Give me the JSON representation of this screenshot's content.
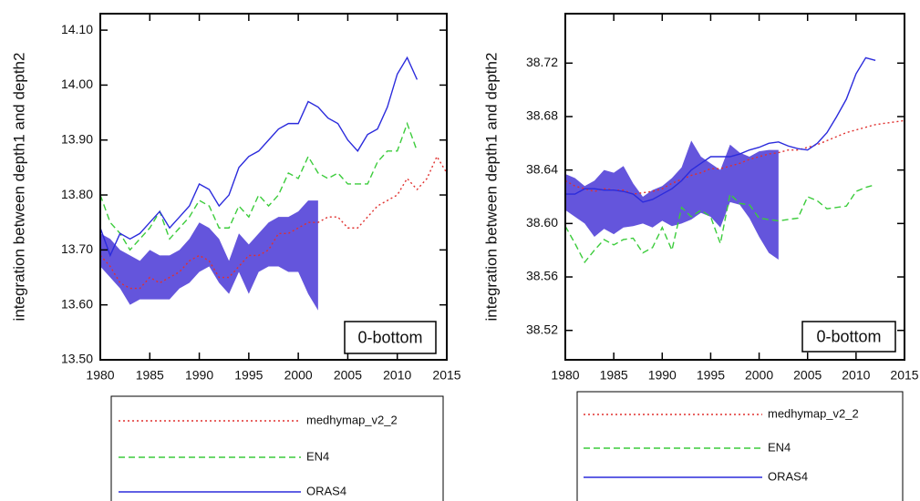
{
  "chart_data": [
    {
      "type": "line",
      "y_label": "integration between depth1 and depth2",
      "annotation": "0-bottom",
      "x": [
        1980,
        1981,
        1982,
        1983,
        1984,
        1985,
        1986,
        1987,
        1988,
        1989,
        1990,
        1991,
        1992,
        1993,
        1994,
        1995,
        1996,
        1997,
        1998,
        1999,
        2000,
        2001,
        2002,
        2003,
        2004,
        2005,
        2006,
        2007,
        2008,
        2009,
        2010,
        2011,
        2012,
        2013,
        2014,
        2015
      ],
      "xlim": [
        1980,
        2015
      ],
      "xticks": [
        1980,
        1985,
        1990,
        1995,
        2000,
        2005,
        2010,
        2015
      ],
      "ylim": [
        13.5,
        14.13
      ],
      "yticks": [
        {
          "value": 13.5,
          "label": "13.50"
        },
        {
          "value": 13.6,
          "label": "13.60"
        },
        {
          "value": 13.7,
          "label": "13.70"
        },
        {
          "value": 13.8,
          "label": "13.80"
        },
        {
          "value": 13.9,
          "label": "13.90"
        },
        {
          "value": 14.0,
          "label": "14.00"
        },
        {
          "value": 14.1,
          "label": "14.10"
        }
      ],
      "band": {
        "color": "#6455dc",
        "lower": [
          13.67,
          13.65,
          13.63,
          13.6,
          13.61,
          13.61,
          13.61,
          13.61,
          13.63,
          13.64,
          13.66,
          13.67,
          13.64,
          13.62,
          13.66,
          13.62,
          13.66,
          13.67,
          13.67,
          13.66,
          13.66,
          13.62,
          13.59,
          null,
          null,
          null,
          null,
          null,
          null,
          null,
          null,
          null,
          null,
          null,
          null,
          null
        ],
        "upper": [
          13.73,
          13.72,
          13.7,
          13.69,
          13.68,
          13.7,
          13.69,
          13.69,
          13.7,
          13.72,
          13.75,
          13.74,
          13.72,
          13.68,
          13.73,
          13.71,
          13.73,
          13.75,
          13.76,
          13.76,
          13.77,
          13.79,
          13.79,
          null,
          null,
          null,
          null,
          null,
          null,
          null,
          null,
          null,
          null,
          null,
          null,
          null
        ]
      },
      "series": [
        {
          "name": "medhymap_v2_2",
          "color": "#e0302e",
          "dash": "2,3",
          "values": [
            13.69,
            13.67,
            13.64,
            13.63,
            13.63,
            13.65,
            13.64,
            13.65,
            13.66,
            13.68,
            13.69,
            13.68,
            13.65,
            13.65,
            13.67,
            13.69,
            13.69,
            13.7,
            13.73,
            13.73,
            13.74,
            13.75,
            13.75,
            13.76,
            13.76,
            13.74,
            13.74,
            13.76,
            13.78,
            13.79,
            13.8,
            13.83,
            13.81,
            13.83,
            13.87,
            13.84
          ]
        },
        {
          "name": "EN4",
          "color": "#3ccc3c",
          "dash": "7,4",
          "values": [
            13.8,
            13.75,
            13.73,
            13.7,
            13.72,
            13.74,
            13.77,
            13.72,
            13.74,
            13.76,
            13.79,
            13.78,
            13.74,
            13.74,
            13.78,
            13.76,
            13.8,
            13.78,
            13.8,
            13.84,
            13.83,
            13.87,
            13.84,
            13.83,
            13.84,
            13.82,
            13.82,
            13.82,
            13.86,
            13.88,
            13.88,
            13.93,
            13.88,
            null,
            null,
            null
          ]
        },
        {
          "name": "ORAS4",
          "color": "#2b2bdc",
          "dash": "none",
          "values": [
            13.74,
            13.69,
            13.73,
            13.72,
            13.73,
            13.75,
            13.77,
            13.74,
            13.76,
            13.78,
            13.82,
            13.81,
            13.78,
            13.8,
            13.85,
            13.87,
            13.88,
            13.9,
            13.92,
            13.93,
            13.93,
            13.97,
            13.96,
            13.94,
            13.93,
            13.9,
            13.88,
            13.91,
            13.92,
            13.96,
            14.02,
            14.05,
            14.01,
            null,
            null,
            null
          ]
        }
      ]
    },
    {
      "type": "line",
      "y_label": "integration between depth1 and depth2",
      "annotation": "0-bottom",
      "x": [
        1980,
        1981,
        1982,
        1983,
        1984,
        1985,
        1986,
        1987,
        1988,
        1989,
        1990,
        1991,
        1992,
        1993,
        1994,
        1995,
        1996,
        1997,
        1998,
        1999,
        2000,
        2001,
        2002,
        2003,
        2004,
        2005,
        2006,
        2007,
        2008,
        2009,
        2010,
        2011,
        2012,
        2013,
        2014,
        2015
      ],
      "xlim": [
        1980,
        2015
      ],
      "xticks": [
        1980,
        1985,
        1990,
        1995,
        2000,
        2005,
        2010,
        2015
      ],
      "ylim": [
        38.498,
        38.757
      ],
      "yticks": [
        38.52,
        38.56,
        {
          "value": 38.6,
          "label": "38.60"
        },
        38.64,
        38.68,
        38.72
      ],
      "band": {
        "color": "#6455dc",
        "lower": [
          38.61,
          38.605,
          38.6,
          38.59,
          38.596,
          38.592,
          38.597,
          38.598,
          38.6,
          38.597,
          38.602,
          38.598,
          38.6,
          38.603,
          38.608,
          38.605,
          38.597,
          38.616,
          38.614,
          38.604,
          38.59,
          38.578,
          38.573,
          null,
          null,
          null,
          null,
          null,
          null,
          null,
          null,
          null,
          null,
          null,
          null,
          null
        ],
        "upper": [
          38.637,
          38.634,
          38.628,
          38.632,
          38.64,
          38.638,
          38.643,
          38.63,
          38.62,
          38.625,
          38.628,
          38.634,
          38.642,
          38.662,
          38.65,
          38.645,
          38.64,
          38.659,
          38.653,
          38.65,
          38.654,
          38.655,
          38.655,
          null,
          null,
          null,
          null,
          null,
          null,
          null,
          null,
          null,
          null,
          null,
          null,
          null
        ]
      },
      "series": [
        {
          "name": "medhymap_v2_2",
          "color": "#e0302e",
          "dash": "2,3",
          "values": [
            38.632,
            38.628,
            38.626,
            38.624,
            38.626,
            38.625,
            38.625,
            38.622,
            38.623,
            38.624,
            38.626,
            38.63,
            38.633,
            38.636,
            38.638,
            38.641,
            38.641,
            38.643,
            38.645,
            38.648,
            38.65,
            38.652,
            38.653,
            38.655,
            38.655,
            38.657,
            38.659,
            38.662,
            38.665,
            38.668,
            38.67,
            38.672,
            38.674,
            38.675,
            38.676,
            38.677
          ]
        },
        {
          "name": "EN4",
          "color": "#3ccc3c",
          "dash": "7,4",
          "values": [
            38.598,
            38.585,
            38.571,
            38.58,
            38.588,
            38.584,
            38.588,
            38.589,
            38.578,
            38.582,
            38.597,
            38.58,
            38.612,
            38.605,
            38.61,
            38.605,
            38.585,
            38.622,
            38.615,
            38.614,
            38.604,
            38.603,
            38.602,
            38.603,
            38.604,
            38.62,
            38.617,
            38.611,
            38.612,
            38.613,
            38.624,
            38.627,
            38.629,
            null,
            null,
            null
          ]
        },
        {
          "name": "ORAS4",
          "color": "#2b2bdc",
          "dash": "none",
          "values": [
            38.622,
            38.622,
            38.626,
            38.626,
            38.625,
            38.625,
            38.624,
            38.622,
            38.616,
            38.618,
            38.622,
            38.626,
            38.632,
            38.64,
            38.645,
            38.65,
            38.65,
            38.65,
            38.652,
            38.655,
            38.657,
            38.66,
            38.661,
            38.658,
            38.656,
            38.655,
            38.66,
            38.668,
            38.68,
            38.693,
            38.712,
            38.724,
            38.722,
            null,
            null,
            null
          ]
        }
      ]
    }
  ]
}
